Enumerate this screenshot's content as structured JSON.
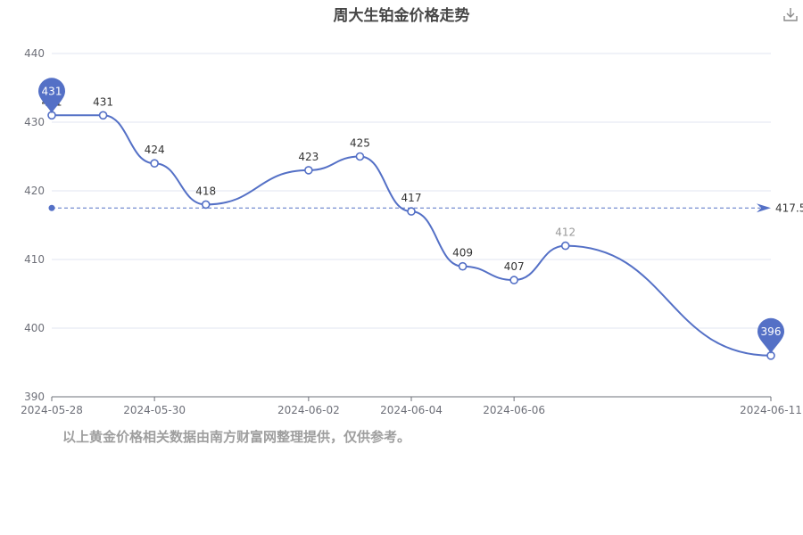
{
  "title": "周大生铂金价格走势",
  "footnote": "以上黄金价格相关数据由南方财富网整理提供，仅供参考。",
  "toolbar": {
    "download_icon": "download-icon"
  },
  "colors": {
    "series": "#5470c6",
    "grid": "#e0e6f1",
    "axis": "#6e7079",
    "text": "#333333",
    "pin": "#5470c6"
  },
  "chart_data": {
    "type": "line",
    "smooth": true,
    "title": "周大生铂金价格走势",
    "xlabel": "",
    "ylabel": "",
    "ylim": [
      390,
      440
    ],
    "y_ticks": [
      390,
      400,
      410,
      420,
      430,
      440
    ],
    "x_tick_labels": [
      "2024-05-28",
      "2024-05-30",
      "2024-06-02",
      "2024-06-04",
      "2024-06-06",
      "2024-06-11"
    ],
    "grid": true,
    "x": [
      "2024-05-28",
      "2024-05-29",
      "2024-05-30",
      "2024-05-31",
      "2024-06-02",
      "2024-06-03",
      "2024-06-04",
      "2024-06-05",
      "2024-06-06",
      "2024-06-07",
      "2024-06-11"
    ],
    "series": [
      {
        "values": [
          431,
          431,
          424,
          418,
          423,
          425,
          417,
          409,
          407,
          412,
          396
        ]
      }
    ],
    "point_labels": [
      "431",
      "431",
      "424",
      "418",
      "423",
      "425",
      "417",
      "409",
      "407",
      "412",
      "396"
    ],
    "max_point": {
      "label": "431",
      "value": 431
    },
    "min_point": {
      "label": "396",
      "value": 396
    },
    "average_line": {
      "value": 417.5,
      "label": "417.5"
    }
  }
}
